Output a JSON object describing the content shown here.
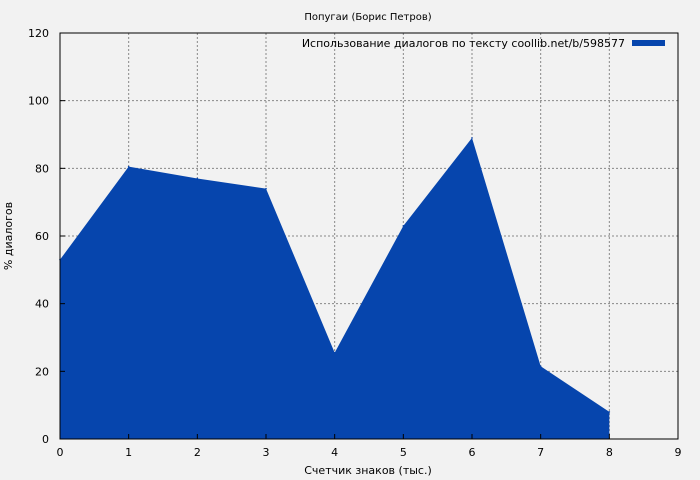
{
  "chart_data": {
    "type": "area",
    "title": "Попугаи (Борис Петров)",
    "xlabel": "Счетчик знаков (тыс.)",
    "ylabel": "% диалогов",
    "xlim": [
      0,
      9
    ],
    "ylim": [
      0,
      120
    ],
    "xticks": [
      "0",
      "1",
      "2",
      "3",
      "4",
      "5",
      "6",
      "7",
      "8",
      "9"
    ],
    "yticks": [
      "0",
      "20",
      "40",
      "60",
      "80",
      "100",
      "120"
    ],
    "grid": true,
    "legend_position": "top-right",
    "series": [
      {
        "name": "Использование диалогов по тексту coollib.net/b/598577",
        "color": "#0645ad",
        "x": [
          0,
          1,
          2,
          3,
          4,
          5,
          6,
          7,
          8
        ],
        "y": [
          53,
          80.5,
          77,
          74,
          25.5,
          63,
          89,
          21.5,
          8
        ]
      }
    ]
  }
}
